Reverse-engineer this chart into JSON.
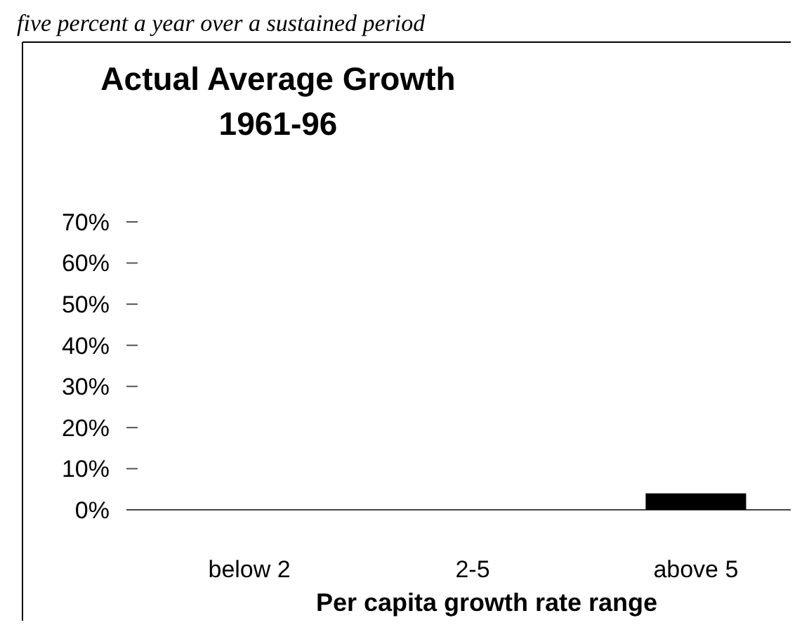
{
  "chart_data": {
    "type": "bar",
    "title": "Actual Average Growth",
    "subtitle": "1961-96",
    "xlabel": "Per capita growth rate range",
    "annotations": [
      "five percent a year over a sustained period"
    ],
    "categories": [
      "below 2",
      "2-5",
      "above 5"
    ],
    "values": [
      0,
      0,
      4
    ],
    "color": "#000000",
    "ylim": [
      0,
      70
    ],
    "yticks": [
      {
        "value": 0,
        "label": "0%"
      },
      {
        "value": 10,
        "label": "10%"
      },
      {
        "value": 20,
        "label": "20%"
      },
      {
        "value": 30,
        "label": "30%"
      },
      {
        "value": 40,
        "label": "40%"
      },
      {
        "value": 50,
        "label": "50%"
      },
      {
        "value": 60,
        "label": "60%"
      },
      {
        "value": 70,
        "label": "70%"
      }
    ]
  }
}
